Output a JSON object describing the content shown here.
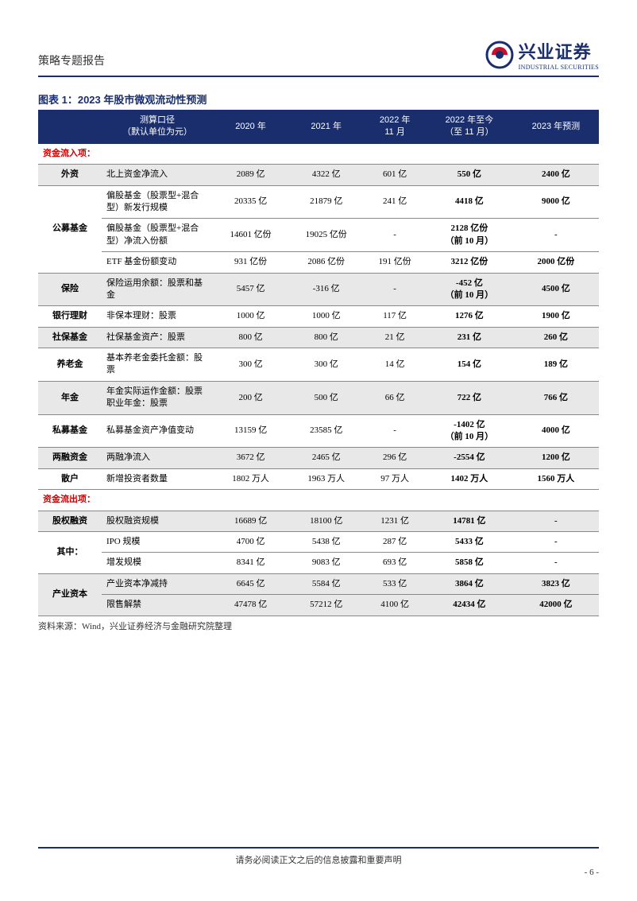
{
  "header": {
    "title": "策略专题报告",
    "logo_cn": "兴业证券",
    "logo_en": "INDUSTRIAL SECURITIES"
  },
  "chart": {
    "title": "图表 1：2023 年股市微观流动性预测",
    "columns": [
      "",
      "测算口径\n（默认单位为元）",
      "2020 年",
      "2021 年",
      "2022 年\n11 月",
      "2022 年至今\n（至 11 月）",
      "2023 年预测"
    ]
  },
  "sections": {
    "inflow_label": "资金流入项：",
    "outflow_label": "资金流出项："
  },
  "rows_in": [
    {
      "cat": "外资",
      "desc": "北上资金净流入",
      "y20": "2089 亿",
      "y21": "4322 亿",
      "m11": "601 亿",
      "ytd": "550 亿",
      "f23": "2400 亿",
      "stripe": true,
      "rowspan": 1
    },
    {
      "cat": "公募基金",
      "desc": "偏股基金（股票型+混合型）新发行规模",
      "y20": "20335 亿",
      "y21": "21879 亿",
      "m11": "241 亿",
      "ytd": "4418 亿",
      "f23": "9000 亿",
      "rowspan": 3
    },
    {
      "desc": "偏股基金（股票型+混合型）净流入份额",
      "y20": "14601 亿份",
      "y21": "19025 亿份",
      "m11": "-",
      "ytd": "2128 亿份\n（前 10 月）",
      "f23": "-"
    },
    {
      "desc": "ETF 基金份额变动",
      "y20": "931 亿份",
      "y21": "2086 亿份",
      "m11": "191 亿份",
      "ytd": "3212 亿份",
      "f23": "2000 亿份"
    },
    {
      "cat": "保险",
      "desc": "保险运用余额：股票和基金",
      "y20": "5457 亿",
      "y21": "-316 亿",
      "m11": "-",
      "ytd": "-452 亿\n（前 10 月）",
      "f23": "4500 亿",
      "stripe": true,
      "rowspan": 1
    },
    {
      "cat": "银行理财",
      "desc": "非保本理财：股票",
      "y20": "1000 亿",
      "y21": "1000 亿",
      "m11": "117 亿",
      "ytd": "1276 亿",
      "f23": "1900 亿",
      "rowspan": 1
    },
    {
      "cat": "社保基金",
      "desc": "社保基金资产：股票",
      "y20": "800 亿",
      "y21": "800 亿",
      "m11": "21 亿",
      "ytd": "231 亿",
      "f23": "260 亿",
      "stripe": true,
      "rowspan": 1
    },
    {
      "cat": "养老金",
      "desc": "基本养老金委托金额：股票",
      "y20": "300 亿",
      "y21": "300 亿",
      "m11": "14 亿",
      "ytd": "154 亿",
      "f23": "189 亿",
      "rowspan": 1
    },
    {
      "cat": "年金",
      "desc": "年金实际运作金额：股票\n职业年金：股票",
      "y20": "200 亿",
      "y21": "500 亿",
      "m11": "66 亿",
      "ytd": "722 亿",
      "f23": "766 亿",
      "stripe": true,
      "rowspan": 1
    },
    {
      "cat": "私募基金",
      "desc": "私募基金资产净值变动",
      "y20": "13159 亿",
      "y21": "23585 亿",
      "m11": "-",
      "ytd": "-1402 亿\n（前 10 月）",
      "f23": "4000 亿",
      "rowspan": 1
    },
    {
      "cat": "两融资金",
      "desc": "两融净流入",
      "y20": "3672 亿",
      "y21": "2465 亿",
      "m11": "296 亿",
      "ytd": "-2554 亿",
      "f23": "1200 亿",
      "stripe": true,
      "rowspan": 1
    },
    {
      "cat": "散户",
      "desc": "新增投资者数量",
      "y20": "1802 万人",
      "y21": "1963 万人",
      "m11": "97 万人",
      "ytd": "1402 万人",
      "f23": "1560 万人",
      "rowspan": 1
    }
  ],
  "rows_out": [
    {
      "cat": "股权融资",
      "desc": "股权融资规模",
      "y20": "16689 亿",
      "y21": "18100 亿",
      "m11": "1231 亿",
      "ytd": "14781 亿",
      "f23": "-",
      "stripe": true,
      "rowspan": 1
    },
    {
      "cat": "其中：",
      "desc": "IPO 规模",
      "y20": "4700 亿",
      "y21": "5438 亿",
      "m11": "287 亿",
      "ytd": "5433 亿",
      "f23": "-",
      "rowspan": 2
    },
    {
      "desc": "增发规模",
      "y20": "8341 亿",
      "y21": "9083 亿",
      "m11": "693 亿",
      "ytd": "5858 亿",
      "f23": "-"
    },
    {
      "cat": "产业资本",
      "desc": "产业资本净减持",
      "y20": "6645 亿",
      "y21": "5584 亿",
      "m11": "533 亿",
      "ytd": "3864 亿",
      "f23": "3823 亿",
      "stripe": true,
      "rowspan": 2
    },
    {
      "desc": "限售解禁",
      "y20": "47478 亿",
      "y21": "57212 亿",
      "m11": "4100 亿",
      "ytd": "42434 亿",
      "f23": "42000 亿",
      "stripe": true
    }
  ],
  "source": "资料来源：Wind，兴业证券经济与金融研究院整理",
  "footer": {
    "disclaimer": "请务必阅读正文之后的信息披露和重要声明",
    "pagenum": "- 6 -"
  },
  "colors": {
    "header_bg": "#1a2e6e",
    "stripe_bg": "#e8e8e8",
    "section_color": "#c00"
  }
}
